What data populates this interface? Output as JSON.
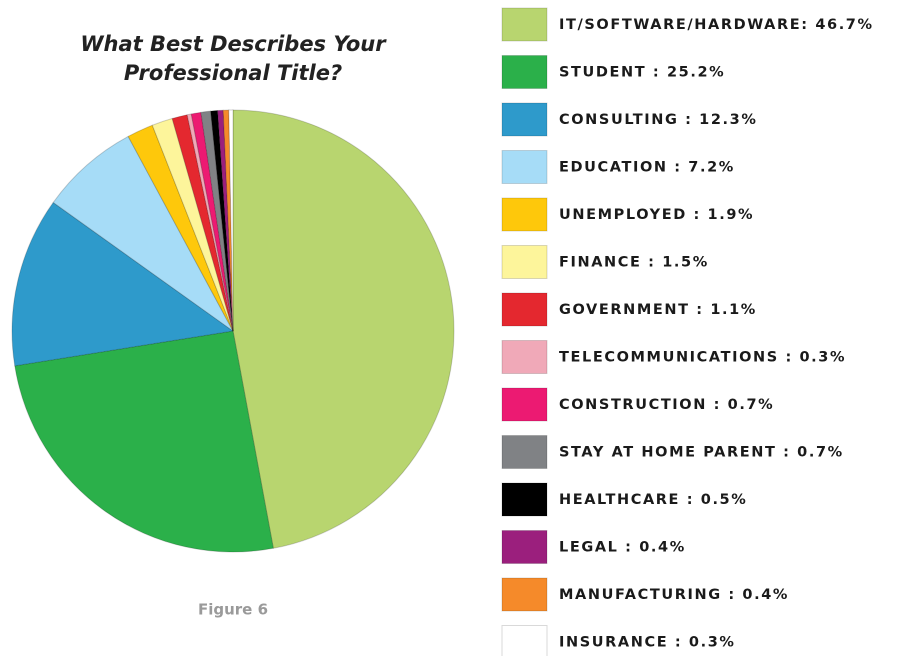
{
  "chart_data": {
    "type": "pie",
    "title": [
      "What Best Describes Your",
      "Professional Title?"
    ],
    "caption": "Figure 6",
    "categories": [
      "IT/SOFTWARE/HARDWARE: 46.7%",
      "STUDENT : 25.2%",
      "CONSULTING : 12.3%",
      "EDUCATION : 7.2%",
      "UNEMPLOYED : 1.9%",
      "FINANCE : 1.5%",
      "GOVERNMENT : 1.1%",
      "TELECOMMUNICATIONS : 0.3%",
      "CONSTRUCTION : 0.7%",
      "STAY AT HOME PARENT : 0.7%",
      "HEALTHCARE : 0.5%",
      "LEGAL : 0.4%",
      "MANUFACTURING : 0.4%",
      "INSURANCE : 0.3%"
    ],
    "values": [
      46.7,
      25.2,
      12.3,
      7.2,
      1.9,
      1.5,
      1.1,
      0.3,
      0.7,
      0.7,
      0.5,
      0.4,
      0.4,
      0.3
    ],
    "colors": [
      "#b8d56f",
      "#2bb04a",
      "#2e9acb",
      "#a6dcf7",
      "#fec80b",
      "#fdf59b",
      "#e4282f",
      "#f0a9b8",
      "#ec1a72",
      "#808285",
      "#000000",
      "#9b1f7d",
      "#f58a2a",
      "#ffffff"
    ],
    "legend": "right"
  }
}
